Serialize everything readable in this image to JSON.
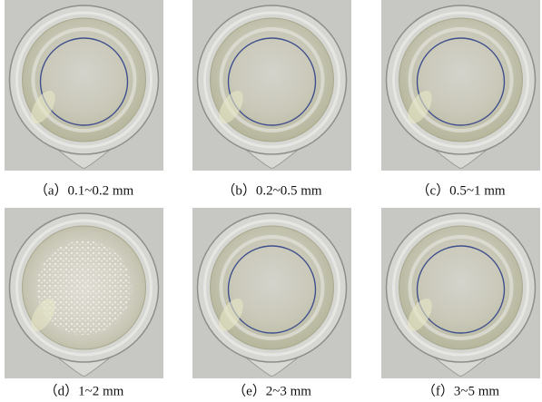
{
  "panels": [
    {
      "caption": "（a）0.1~0.2 mm"
    },
    {
      "caption": "（b）0.2~0.5 mm"
    },
    {
      "caption": "（c）0.5~1 mm"
    },
    {
      "caption": "（d）1~2 mm"
    },
    {
      "caption": "（e）2~3 mm"
    },
    {
      "caption": "（f）3~5 mm"
    }
  ]
}
